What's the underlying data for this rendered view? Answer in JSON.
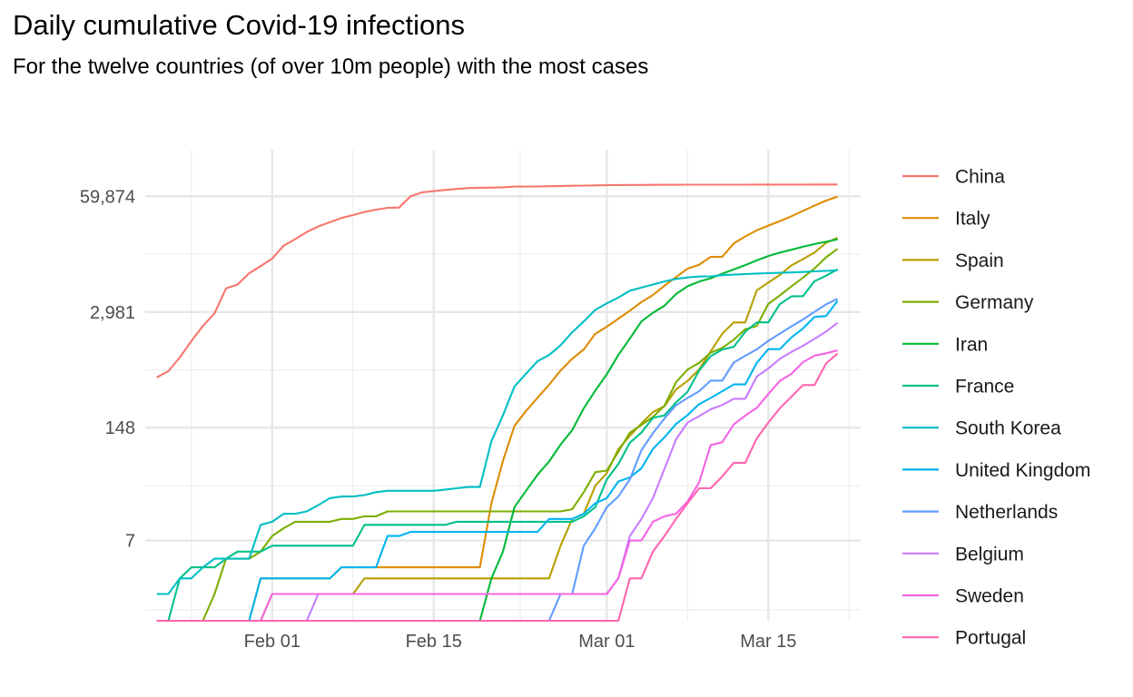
{
  "title": "Daily cumulative Covid-19 infections",
  "subtitle": "For the twelve countries (of over 10m people) with the most cases",
  "chart_data": {
    "type": "line",
    "title": "Daily cumulative Covid-19 infections",
    "subtitle": "For the twelve countries (of over 10m people) with the most cases",
    "xlabel": "",
    "ylabel": "",
    "y_scale": "log",
    "x_start": "2020-01-22",
    "xlim": [
      "2020-01-21",
      "2020-03-23"
    ],
    "ylim": [
      1,
      200000
    ],
    "x_ticks": [
      {
        "label": "Feb 01",
        "value": "2020-02-01"
      },
      {
        "label": "Feb 15",
        "value": "2020-02-15"
      },
      {
        "label": "Mar 01",
        "value": "2020-03-01"
      },
      {
        "label": "Mar 15",
        "value": "2020-03-15"
      }
    ],
    "y_ticks": [
      {
        "label": "7",
        "value": 7
      },
      {
        "label": "148",
        "value": 148
      },
      {
        "label": "2,981",
        "value": 2981
      },
      {
        "label": "59,874",
        "value": 59874
      }
    ],
    "grid": true,
    "legend_position": "right",
    "series": [
      {
        "name": "China",
        "color": "#F8766D",
        "values": [
          548,
          643,
          920,
          1406,
          2075,
          2877,
          5509,
          6087,
          8141,
          9802,
          11891,
          16630,
          19716,
          23707,
          27440,
          30587,
          34110,
          36814,
          39829,
          42354,
          44386,
          44759,
          59895,
          66358,
          68413,
          70513,
          72434,
          74211,
          74619,
          75077,
          75550,
          77001,
          77022,
          77241,
          77754,
          78166,
          78600,
          78928,
          79356,
          79932,
          80136,
          80261,
          80386,
          80537,
          80690,
          80770,
          80823,
          80860,
          80887,
          80921,
          80932,
          80945,
          80977,
          81003,
          81033,
          81058,
          81102,
          81156,
          81250,
          81305
        ]
      },
      {
        "name": "Italy",
        "color": "#DE8C00",
        "values": [
          0,
          0,
          0,
          0,
          0,
          0,
          0,
          0,
          0,
          2,
          2,
          2,
          2,
          2,
          2,
          2,
          3,
          3,
          3,
          3,
          3,
          3,
          3,
          3,
          3,
          3,
          3,
          3,
          3,
          20,
          62,
          155,
          229,
          322,
          453,
          655,
          888,
          1128,
          1694,
          2036,
          2502,
          3089,
          3858,
          4636,
          5883,
          7375,
          9172,
          10149,
          12462,
          12462,
          17660,
          21157,
          24747,
          27980,
          31506,
          35713,
          41035,
          47021,
          53578,
          59138
        ]
      },
      {
        "name": "Spain",
        "color": "#B79F00",
        "values": [
          0,
          0,
          0,
          0,
          0,
          0,
          0,
          0,
          0,
          0,
          1,
          1,
          1,
          1,
          1,
          1,
          1,
          1,
          2,
          2,
          2,
          2,
          2,
          2,
          2,
          2,
          2,
          2,
          2,
          2,
          2,
          2,
          2,
          2,
          2,
          6,
          13,
          15,
          32,
          45,
          84,
          120,
          165,
          222,
          259,
          400,
          500,
          673,
          1073,
          1695,
          2277,
          2277,
          5232,
          6391,
          7798,
          9942,
          11748,
          13910,
          17963,
          20410
        ]
      },
      {
        "name": "Germany",
        "color": "#7CAE00",
        "values": [
          0,
          0,
          0,
          0,
          0,
          1,
          4,
          4,
          4,
          5,
          8,
          10,
          12,
          12,
          12,
          12,
          13,
          13,
          14,
          14,
          16,
          16,
          16,
          16,
          16,
          16,
          16,
          16,
          16,
          16,
          16,
          16,
          16,
          16,
          16,
          16,
          17,
          27,
          46,
          48,
          79,
          130,
          159,
          196,
          262,
          482,
          670,
          799,
          1040,
          1176,
          1457,
          1908,
          2078,
          3675,
          4585,
          5795,
          7272,
          9257,
          12327,
          15320
        ]
      },
      {
        "name": "Iran",
        "color": "#00BA38",
        "values": [
          0,
          0,
          0,
          0,
          0,
          0,
          0,
          0,
          0,
          0,
          0,
          0,
          0,
          0,
          0,
          0,
          0,
          0,
          0,
          0,
          0,
          0,
          0,
          0,
          0,
          0,
          0,
          0,
          0,
          2,
          5,
          18,
          28,
          43,
          61,
          95,
          139,
          245,
          388,
          593,
          978,
          1501,
          2336,
          2922,
          3513,
          4747,
          5823,
          6566,
          7161,
          8042,
          9000,
          10075,
          11364,
          12729,
          13938,
          14991,
          16169,
          17361,
          18407,
          19644
        ]
      },
      {
        "name": "France",
        "color": "#00C08B",
        "values": [
          0,
          0,
          2,
          3,
          3,
          3,
          4,
          5,
          5,
          5,
          6,
          6,
          6,
          6,
          6,
          6,
          6,
          6,
          11,
          11,
          11,
          11,
          11,
          11,
          11,
          11,
          12,
          12,
          12,
          12,
          12,
          12,
          12,
          12,
          12,
          12,
          12,
          14,
          18,
          38,
          57,
          100,
          130,
          191,
          204,
          285,
          377,
          653,
          949,
          1126,
          1209,
          1784,
          2281,
          2281,
          3661,
          4469,
          4499,
          6633,
          7652,
          9043
        ]
      },
      {
        "name": "South Korea",
        "color": "#00BFC4",
        "values": [
          1,
          1,
          2,
          2,
          3,
          4,
          4,
          4,
          4,
          11,
          12,
          15,
          15,
          16,
          19,
          23,
          24,
          24,
          25,
          27,
          28,
          28,
          28,
          28,
          28,
          29,
          30,
          31,
          31,
          104,
          204,
          433,
          602,
          833,
          977,
          1261,
          1766,
          2337,
          3150,
          3736,
          4335,
          5186,
          5621,
          6088,
          6593,
          7041,
          7314,
          7478,
          7513,
          7755,
          7869,
          7979,
          8086,
          8162,
          8236,
          8320,
          8413,
          8565,
          8652,
          8799
        ]
      },
      {
        "name": "United Kingdom",
        "color": "#00B4F0",
        "values": [
          0,
          0,
          0,
          0,
          0,
          0,
          0,
          0,
          0,
          2,
          2,
          2,
          2,
          2,
          2,
          2,
          3,
          3,
          3,
          3,
          8,
          8,
          9,
          9,
          9,
          9,
          9,
          9,
          9,
          9,
          9,
          9,
          9,
          9,
          13,
          13,
          13,
          15,
          20,
          23,
          36,
          40,
          51,
          85,
          115,
          163,
          206,
          273,
          321,
          382,
          456,
          456,
          798,
          1140,
          1140,
          1543,
          1950,
          2626,
          2689,
          3983
        ]
      },
      {
        "name": "Netherlands",
        "color": "#619CFF",
        "values": [
          0,
          0,
          0,
          0,
          0,
          0,
          0,
          0,
          0,
          0,
          0,
          0,
          0,
          0,
          0,
          0,
          0,
          0,
          0,
          0,
          0,
          0,
          0,
          0,
          0,
          0,
          0,
          0,
          0,
          0,
          0,
          0,
          0,
          0,
          0,
          1,
          1,
          6,
          10,
          18,
          24,
          38,
          82,
          128,
          188,
          265,
          321,
          382,
          503,
          503,
          804,
          959,
          1135,
          1413,
          1705,
          2051,
          2460,
          2994,
          3631,
          4204
        ]
      },
      {
        "name": "Belgium",
        "color": "#C77CFF",
        "values": [
          0,
          0,
          0,
          0,
          0,
          0,
          0,
          0,
          0,
          0,
          0,
          0,
          0,
          0,
          1,
          1,
          1,
          1,
          1,
          1,
          1,
          1,
          1,
          1,
          1,
          1,
          1,
          1,
          1,
          1,
          1,
          1,
          1,
          1,
          1,
          1,
          1,
          1,
          1,
          1,
          2,
          8,
          13,
          23,
          50,
          109,
          169,
          200,
          239,
          267,
          314,
          314,
          559,
          689,
          886,
          1058,
          1243,
          1486,
          1795,
          2257
        ]
      },
      {
        "name": "Sweden",
        "color": "#F564E3",
        "values": [
          0,
          0,
          0,
          0,
          0,
          0,
          0,
          0,
          0,
          0,
          1,
          1,
          1,
          1,
          1,
          1,
          1,
          1,
          1,
          1,
          1,
          1,
          1,
          1,
          1,
          1,
          1,
          1,
          1,
          1,
          1,
          1,
          1,
          1,
          1,
          1,
          1,
          1,
          1,
          1,
          2,
          7,
          7,
          12,
          14,
          15,
          21,
          35,
          94,
          101,
          161,
          203,
          248,
          355,
          500,
          599,
          814,
          961,
          1022,
          1103
        ]
      },
      {
        "name": "Portugal",
        "color": "#FF64B0",
        "values": [
          0,
          0,
          0,
          0,
          0,
          0,
          0,
          0,
          0,
          0,
          0,
          0,
          0,
          0,
          0,
          0,
          0,
          0,
          0,
          0,
          0,
          0,
          0,
          0,
          0,
          0,
          0,
          0,
          0,
          0,
          0,
          0,
          0,
          0,
          0,
          0,
          0,
          0,
          0,
          0,
          0,
          2,
          2,
          5,
          8,
          13,
          20,
          30,
          30,
          41,
          59,
          59,
          112,
          169,
          245,
          331,
          448,
          448,
          785,
          1020
        ]
      }
    ]
  }
}
